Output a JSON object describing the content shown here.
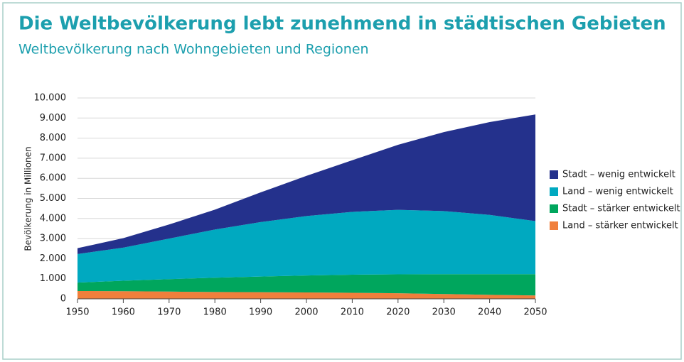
{
  "chart_data": {
    "type": "stacked_area",
    "title": "Die Weltbevölkerung lebt zunehmend in städtischen Gebieten",
    "subtitle": "Weltbevölkerung nach Wohngebieten und Regionen",
    "ylabel": "Bevölkerung in Millionen",
    "x": [
      1950,
      1960,
      1970,
      1980,
      1990,
      2000,
      2010,
      2020,
      2030,
      2040,
      2050
    ],
    "series": [
      {
        "name": "Land – stärker entwickelt",
        "color": "#f07f3c",
        "values": [
          390,
          380,
          360,
          340,
          330,
          320,
          300,
          280,
          240,
          200,
          170
        ]
      },
      {
        "name": "Stadt – stärker entwickelt",
        "color": "#00a65d",
        "values": [
          420,
          520,
          620,
          710,
          780,
          840,
          900,
          940,
          990,
          1030,
          1060
        ]
      },
      {
        "name": "Land – wenig entwickelt",
        "color": "#00a9c0",
        "values": [
          1420,
          1650,
          2020,
          2400,
          2710,
          2960,
          3130,
          3210,
          3140,
          2950,
          2640
        ]
      },
      {
        "name": "Stadt – wenig entwickelt",
        "color": "#24318c",
        "values": [
          290,
          470,
          700,
          990,
          1480,
          2000,
          2570,
          3240,
          3930,
          4620,
          5310
        ]
      }
    ],
    "xlim": [
      1950,
      2050
    ],
    "xticks": [
      1950,
      1960,
      1970,
      1980,
      1990,
      2000,
      2010,
      2020,
      2030,
      2040,
      2050
    ],
    "ylim": [
      0,
      10000
    ],
    "yticks": [
      0,
      {
        "value": 1000,
        "label": "1.000"
      },
      {
        "value": 2000,
        "label": "2.000"
      },
      {
        "value": 3000,
        "label": "3.000"
      },
      {
        "value": 4000,
        "label": "4.000"
      },
      {
        "value": 5000,
        "label": "5.000"
      },
      {
        "value": 6000,
        "label": "6.000"
      },
      {
        "value": 7000,
        "label": "7.000"
      },
      {
        "value": 8000,
        "label": "8.000"
      },
      {
        "value": 9000,
        "label": "9.000"
      },
      {
        "value": 10000,
        "label": "10.000"
      }
    ],
    "grid": true,
    "legend": "right"
  }
}
